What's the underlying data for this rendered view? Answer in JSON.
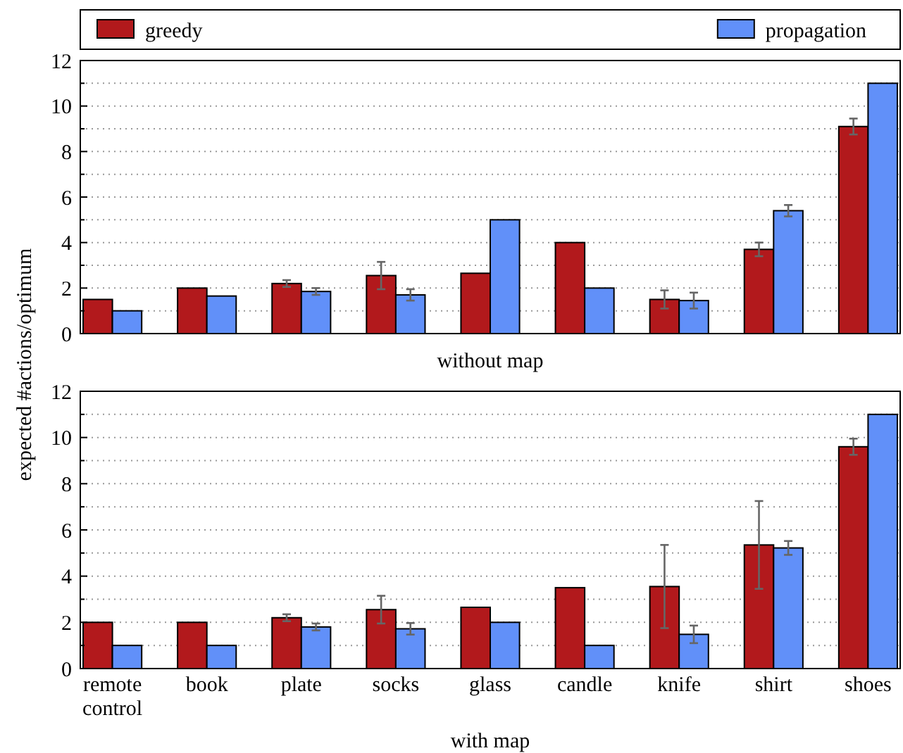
{
  "chart_data": [
    {
      "type": "bar",
      "xlabel": "without map",
      "ylabel": "expected #actions/optimum",
      "categories": [
        null,
        null,
        null,
        null,
        null,
        null,
        null,
        null,
        null
      ],
      "tick_labels": "y",
      "legend": "top",
      "grid": "y",
      "ylim": [
        0,
        12
      ],
      "yticks": [
        0,
        {
          "value": 1,
          "label": null
        },
        2,
        {
          "value": 3,
          "label": null
        },
        4,
        {
          "value": 5,
          "label": null
        },
        6,
        {
          "value": 7,
          "label": null
        },
        8,
        {
          "value": 9,
          "label": null
        },
        10,
        {
          "value": 11,
          "label": null
        },
        12
      ],
      "series": [
        {
          "name": "greedy",
          "color": "#b2191c",
          "values": [
            1.5,
            2.0,
            2.2,
            2.55,
            2.65,
            4.0,
            1.5,
            3.7,
            9.1
          ],
          "errors": [
            null,
            null,
            0.15,
            0.6,
            null,
            null,
            0.4,
            0.3,
            0.35
          ]
        },
        {
          "name": "propagation",
          "color": "#6190f9",
          "values": [
            1.0,
            1.65,
            1.85,
            1.7,
            5.0,
            2.0,
            1.45,
            5.4,
            11.0
          ],
          "errors": [
            null,
            null,
            0.15,
            0.25,
            null,
            null,
            0.35,
            0.25,
            null
          ]
        }
      ]
    },
    {
      "type": "bar",
      "xlabel": "with map",
      "categories": [
        "remote control",
        "book",
        "plate",
        "socks",
        "glass",
        "candle",
        "knife",
        "shirt",
        "shoes"
      ],
      "grid": "y",
      "ylim": [
        0,
        12
      ],
      "yticks": [
        0,
        {
          "value": 1,
          "label": null
        },
        2,
        {
          "value": 3,
          "label": null
        },
        4,
        {
          "value": 5,
          "label": null
        },
        6,
        {
          "value": 7,
          "label": null
        },
        8,
        {
          "value": 9,
          "label": null
        },
        10,
        {
          "value": 11,
          "label": null
        },
        12
      ],
      "series": [
        {
          "color": "#b2191c",
          "values": [
            2.0,
            2.0,
            2.2,
            2.55,
            2.65,
            3.5,
            3.55,
            5.35,
            9.6
          ],
          "errors": [
            null,
            null,
            0.15,
            0.6,
            null,
            null,
            1.8,
            1.9,
            0.35
          ]
        },
        {
          "color": "#6190f9",
          "values": [
            1.0,
            1.0,
            1.8,
            1.72,
            2.0,
            1.0,
            1.48,
            5.22,
            11.0
          ],
          "errors": [
            null,
            null,
            0.15,
            0.25,
            null,
            null,
            0.38,
            0.3,
            null
          ]
        }
      ]
    }
  ]
}
